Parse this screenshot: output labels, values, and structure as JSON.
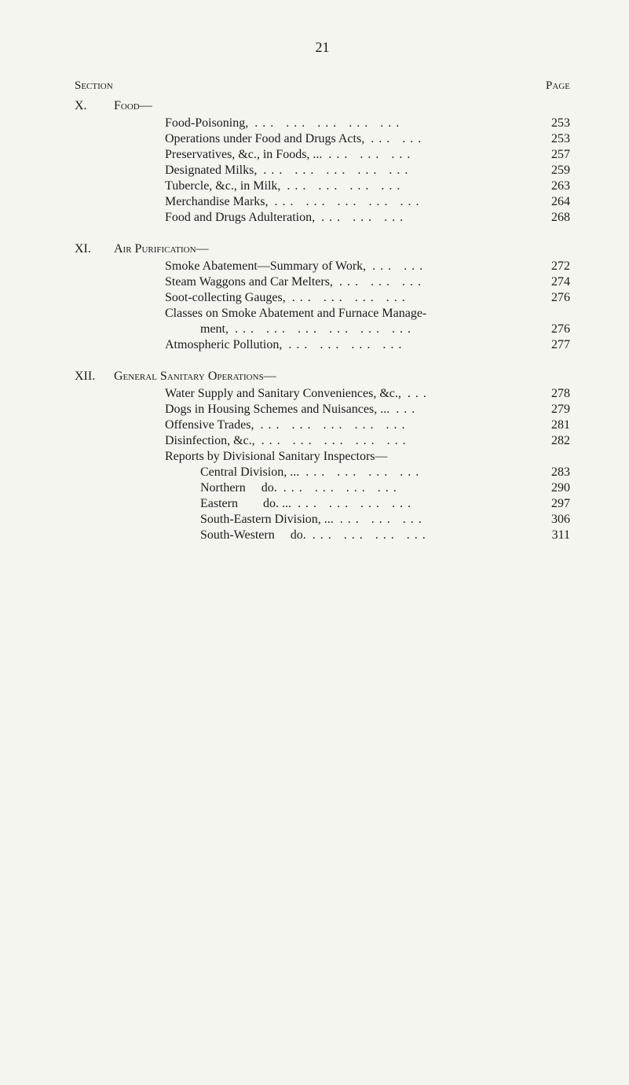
{
  "page_number": "21",
  "header": {
    "left": "Section",
    "right": "Page"
  },
  "sections": [
    {
      "num": "X.",
      "title": "Food—",
      "entries": [
        {
          "text": "Food-Poisoning,",
          "page": "253"
        },
        {
          "text": "Operations under Food and Drugs Acts,",
          "page": "253"
        },
        {
          "text": "Preservatives, &c., in Foods, ...",
          "page": "257"
        },
        {
          "text": "Designated Milks,",
          "page": "259"
        },
        {
          "text": "Tubercle, &c., in Milk,",
          "page": "263"
        },
        {
          "text": "Merchandise Marks,",
          "page": "264"
        },
        {
          "text": "Food and Drugs Adulteration,",
          "page": "268"
        }
      ]
    },
    {
      "num": "XI.",
      "title": "Air Purification—",
      "entries": [
        {
          "text": "Smoke Abatement—Summary of Work,",
          "page": "272"
        },
        {
          "text": "Steam Waggons and Car Melters,",
          "page": "274"
        },
        {
          "text": "Soot-collecting Gauges,",
          "page": "276"
        }
      ],
      "multiline": {
        "line1": "Classes on Smoke Abatement and Furnace Manage-",
        "line2": "ment,",
        "page": "276"
      },
      "entries_after": [
        {
          "text": "Atmospheric Pollution,",
          "page": "277"
        }
      ]
    },
    {
      "num": "XII.",
      "title": "General Sanitary Operations—",
      "entries": [
        {
          "text": "Water Supply and Sanitary Conveniences, &c.,",
          "page": "278"
        },
        {
          "text": "Dogs in Housing Schemes and Nuisances, ...",
          "page": "279"
        },
        {
          "text": "Offensive Trades,",
          "page": "281"
        },
        {
          "text": "Disinfection, &c.,",
          "page": "282"
        }
      ],
      "reports_head": "Reports by Divisional Sanitary Inspectors—",
      "reports": [
        {
          "text": "Central Division, ...",
          "page": "283"
        },
        {
          "text": "Northern     do.",
          "page": "290"
        },
        {
          "text": "Eastern        do. ...",
          "page": "297"
        },
        {
          "text": "South-Eastern Division, ...",
          "page": "306"
        },
        {
          "text": "South-Western     do.",
          "page": "311"
        }
      ]
    }
  ],
  "styling": {
    "background_color": "#f5f5f0",
    "text_color": "#1a1a1a",
    "font_family": "Times New Roman",
    "page_number_fontsize": 18,
    "body_fontsize": 16,
    "header_fontsize": 15
  }
}
